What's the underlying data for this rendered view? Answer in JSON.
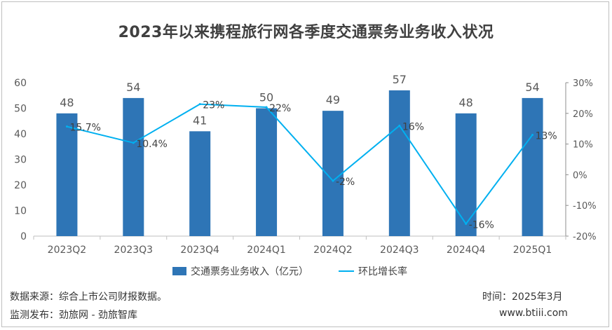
{
  "title": "2023年以来携程旅行网各季度交通票务业务收入状况",
  "footer": {
    "source": "数据来源：综合上市公司财报数据。",
    "publisher": "监测发布：劲旅网 - 劲旅智库",
    "time": "时间：2025年3月",
    "site": "www.btiii.com"
  },
  "chart_data": {
    "type": "bar",
    "categories": [
      "2023Q2",
      "2023Q3",
      "2023Q4",
      "2024Q1",
      "2024Q2",
      "2024Q3",
      "2024Q4",
      "2025Q1"
    ],
    "series": [
      {
        "name": "交通票务业务收入（亿元）",
        "type": "bar",
        "axis": "left",
        "values": [
          48,
          54,
          41,
          50,
          49,
          57,
          48,
          54
        ],
        "labels": [
          "48",
          "54",
          "41",
          "50",
          "49",
          "57",
          "48",
          "54"
        ],
        "color": "#2e75b6"
      },
      {
        "name": "环比增长率",
        "type": "line",
        "axis": "right",
        "values": [
          15.7,
          10.4,
          23,
          22,
          -2,
          16,
          -16,
          13
        ],
        "labels": [
          "15.7%",
          "10.4%",
          "23%",
          "22%",
          "-2%",
          "16%",
          "-16%",
          "13%"
        ],
        "color": "#00b0f0"
      }
    ],
    "y_left": {
      "min": 0,
      "max": 60,
      "ticks": [
        0,
        10,
        20,
        30,
        40,
        50,
        60
      ],
      "tick_labels": [
        "0",
        "10",
        "20",
        "30",
        "40",
        "50",
        "60"
      ]
    },
    "y_right": {
      "min": -20,
      "max": 30,
      "ticks": [
        -20,
        -10,
        0,
        10,
        20,
        30
      ],
      "tick_labels": [
        "-20%",
        "-10%",
        "0%",
        "10%",
        "20%",
        "30%"
      ]
    },
    "legend_position": "bottom",
    "grid": false
  }
}
